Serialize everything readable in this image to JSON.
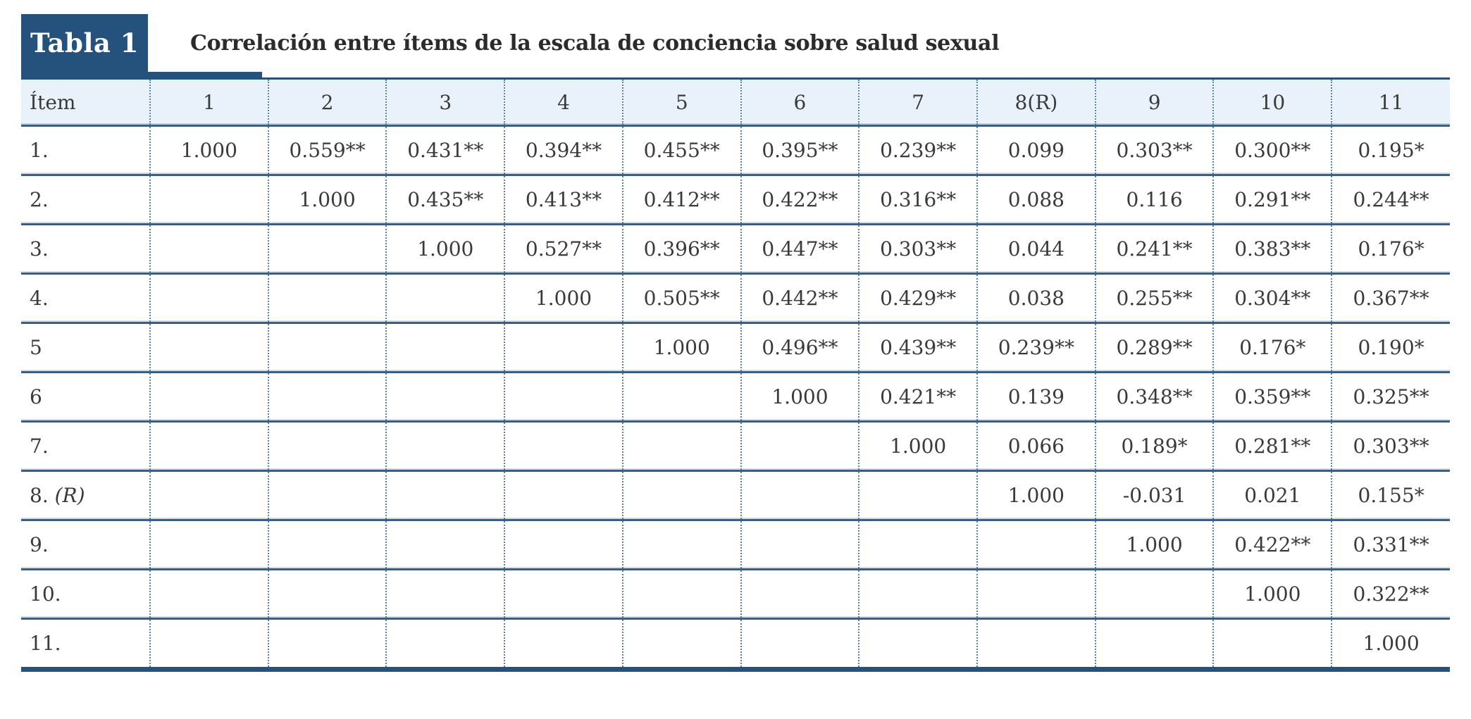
{
  "table": {
    "badge": "Tabla 1",
    "title": "Correlación entre ítems de la escala de conciencia sobre salud sexual",
    "columns": [
      "Ítem",
      "1",
      "2",
      "3",
      "4",
      "5",
      "6",
      "7",
      "8(R)",
      "9",
      "10",
      "11"
    ],
    "rows": [
      {
        "label": "1.",
        "label_italic": "",
        "cells": [
          "1.000",
          "0.559**",
          "0.431**",
          "0.394**",
          "0.455**",
          "0.395**",
          "0.239**",
          "0.099",
          "0.303**",
          "0.300**",
          "0.195*"
        ]
      },
      {
        "label": "2.",
        "label_italic": "",
        "cells": [
          "",
          "1.000",
          "0.435**",
          "0.413**",
          "0.412**",
          "0.422**",
          "0.316**",
          "0.088",
          "0.116",
          "0.291**",
          "0.244**"
        ]
      },
      {
        "label": "3.",
        "label_italic": "",
        "cells": [
          "",
          "",
          "1.000",
          "0.527**",
          "0.396**",
          "0.447**",
          "0.303**",
          "0.044",
          "0.241**",
          "0.383**",
          "0.176*"
        ]
      },
      {
        "label": "4.",
        "label_italic": "",
        "cells": [
          "",
          "",
          "",
          "1.000",
          "0.505**",
          "0.442**",
          "0.429**",
          "0.038",
          "0.255**",
          "0.304**",
          "0.367**"
        ]
      },
      {
        "label": "5",
        "label_italic": "",
        "cells": [
          "",
          "",
          "",
          "",
          "1.000",
          "0.496**",
          "0.439**",
          "0.239**",
          "0.289**",
          "0.176*",
          "0.190*"
        ]
      },
      {
        "label": "6",
        "label_italic": "",
        "cells": [
          "",
          "",
          "",
          "",
          "",
          "1.000",
          "0.421**",
          "0.139",
          "0.348**",
          "0.359**",
          "0.325**"
        ]
      },
      {
        "label": "7.",
        "label_italic": "",
        "cells": [
          "",
          "",
          "",
          "",
          "",
          "",
          "1.000",
          "0.066",
          "0.189*",
          "0.281**",
          "0.303**"
        ]
      },
      {
        "label": "8.",
        "label_italic": "(R)",
        "cells": [
          "",
          "",
          "",
          "",
          "",
          "",
          "",
          "1.000",
          "-0.031",
          "0.021",
          "0.155*"
        ]
      },
      {
        "label": "9.",
        "label_italic": "",
        "cells": [
          "",
          "",
          "",
          "",
          "",
          "",
          "",
          "",
          "1.000",
          "0.422**",
          "0.331**"
        ]
      },
      {
        "label": "10.",
        "label_italic": "",
        "cells": [
          "",
          "",
          "",
          "",
          "",
          "",
          "",
          "",
          "",
          "1.000",
          "0.322**"
        ]
      },
      {
        "label": "11.",
        "label_italic": "",
        "cells": [
          "",
          "",
          "",
          "",
          "",
          "",
          "",
          "",
          "",
          "",
          "1.000"
        ]
      }
    ],
    "colors": {
      "dark_blue": "#24527C",
      "separator_blue": "#31618E",
      "dotted_blue": "#4F81B1",
      "header_bg": "#E9F2FB",
      "text": "#3a3a3a"
    }
  }
}
